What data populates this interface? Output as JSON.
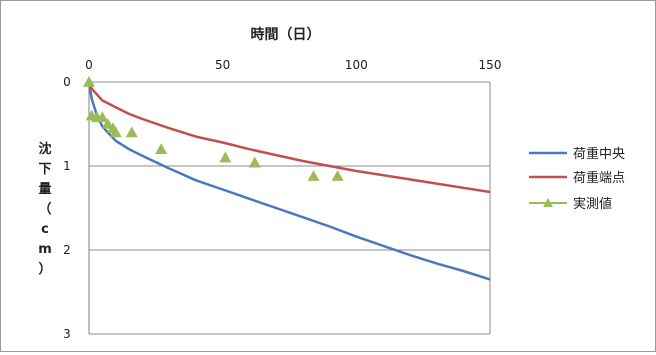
{
  "chart_data": {
    "type": "line",
    "title": "",
    "xlabel": "時間（日）",
    "ylabel": "沈下量（cm）",
    "x_axis_position": "top",
    "y_inverted": true,
    "xlim": [
      0,
      150
    ],
    "ylim": [
      0,
      3
    ],
    "xticks": [
      0,
      50,
      100,
      150
    ],
    "yticks": [
      0,
      1,
      2,
      3
    ],
    "grid": "horizontal",
    "legend_position": "right",
    "series": [
      {
        "name": "荷重中央",
        "style": "line",
        "color": "#4a78bf",
        "x": [
          0,
          1,
          3,
          5,
          10,
          15,
          20,
          30,
          35,
          40,
          50,
          60,
          70,
          80,
          90,
          100,
          110,
          120,
          130,
          140,
          150
        ],
        "y": [
          0,
          0.2,
          0.4,
          0.53,
          0.7,
          0.8,
          0.88,
          1.03,
          1.1,
          1.17,
          1.28,
          1.39,
          1.5,
          1.61,
          1.72,
          1.84,
          1.95,
          2.06,
          2.16,
          2.25,
          2.35
        ]
      },
      {
        "name": "荷重端点",
        "style": "line",
        "color": "#c0504d",
        "x": [
          0,
          1,
          3,
          5,
          10,
          15,
          20,
          30,
          40,
          50,
          60,
          70,
          80,
          90,
          100,
          110,
          120,
          130,
          140,
          150
        ],
        "y": [
          0,
          0.08,
          0.15,
          0.22,
          0.3,
          0.38,
          0.44,
          0.55,
          0.65,
          0.72,
          0.8,
          0.87,
          0.94,
          1.0,
          1.06,
          1.11,
          1.16,
          1.21,
          1.26,
          1.31
        ]
      },
      {
        "name": "実測値",
        "style": "marker",
        "marker": "triangle",
        "color": "#9bbb59",
        "x": [
          0,
          1,
          3,
          5,
          7,
          9,
          10,
          16,
          27,
          51,
          62,
          84,
          93
        ],
        "y": [
          0,
          0.4,
          0.42,
          0.42,
          0.5,
          0.55,
          0.6,
          0.6,
          0.8,
          0.9,
          0.96,
          1.12,
          1.12
        ]
      }
    ]
  }
}
